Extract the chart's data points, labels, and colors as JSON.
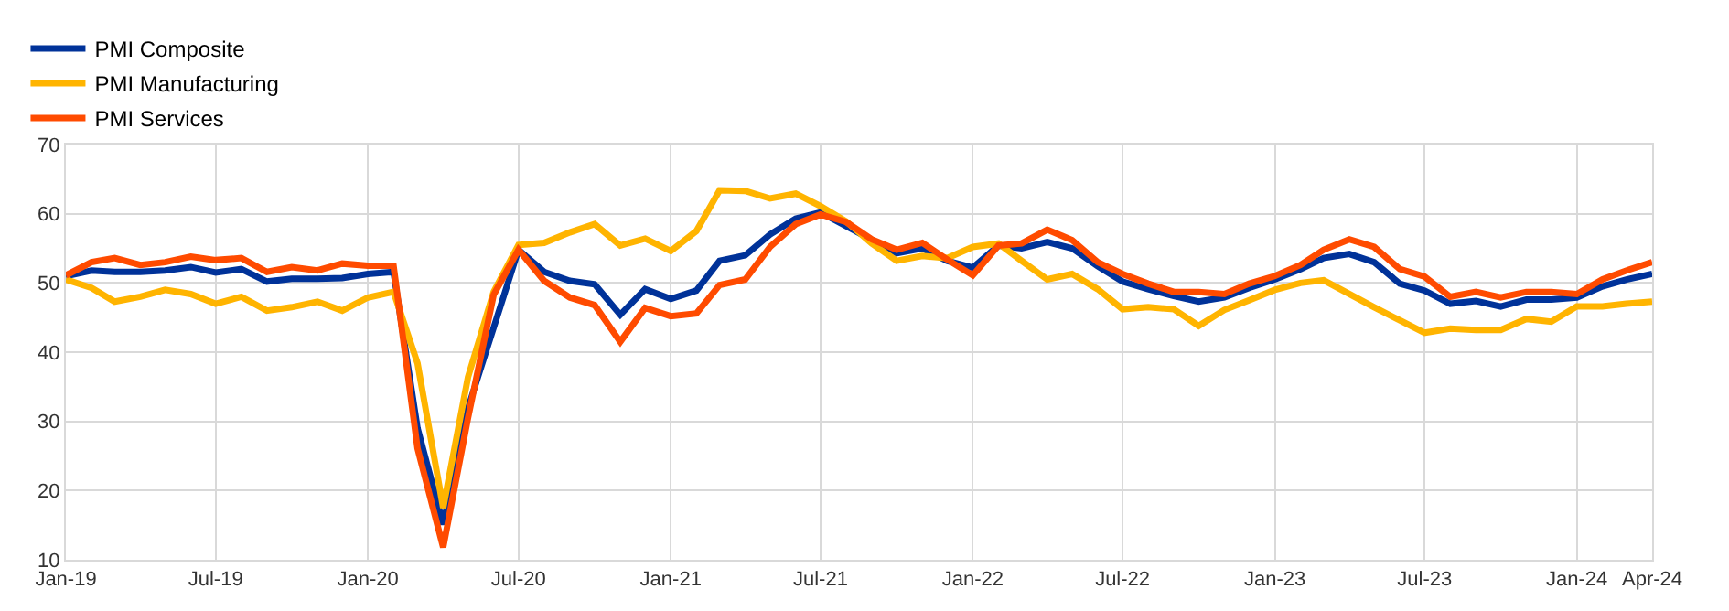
{
  "chart_data": {
    "type": "line",
    "x": [
      "2019-01",
      "2019-02",
      "2019-03",
      "2019-04",
      "2019-05",
      "2019-06",
      "2019-07",
      "2019-08",
      "2019-09",
      "2019-10",
      "2019-11",
      "2019-12",
      "2020-01",
      "2020-02",
      "2020-03",
      "2020-04",
      "2020-05",
      "2020-06",
      "2020-07",
      "2020-08",
      "2020-09",
      "2020-10",
      "2020-11",
      "2020-12",
      "2021-01",
      "2021-02",
      "2021-03",
      "2021-04",
      "2021-05",
      "2021-06",
      "2021-07",
      "2021-08",
      "2021-09",
      "2021-10",
      "2021-11",
      "2021-12",
      "2022-01",
      "2022-02",
      "2022-03",
      "2022-04",
      "2022-05",
      "2022-06",
      "2022-07",
      "2022-08",
      "2022-09",
      "2022-10",
      "2022-11",
      "2022-12",
      "2023-01",
      "2023-02",
      "2023-03",
      "2023-04",
      "2023-05",
      "2023-06",
      "2023-07",
      "2023-08",
      "2023-09",
      "2023-10",
      "2023-11",
      "2023-12",
      "2024-01",
      "2024-02",
      "2024-03",
      "2024-04"
    ],
    "series": [
      {
        "name": "PMI Composite",
        "color": "#003299",
        "values": [
          51.0,
          51.8,
          51.6,
          51.6,
          51.8,
          52.3,
          51.5,
          52.0,
          50.2,
          50.6,
          50.6,
          50.7,
          51.3,
          51.6,
          29.0,
          15.1,
          31.9,
          null,
          54.8,
          51.6,
          50.3,
          49.8,
          45.4,
          49.1,
          47.7,
          48.9,
          53.2,
          54.0,
          57.0,
          59.3,
          60.2,
          null,
          null,
          54.3,
          55.0,
          53.2,
          52.2,
          55.4,
          55.0,
          55.9,
          55.0,
          52.4,
          50.2,
          49.1,
          48.1,
          47.3,
          47.9,
          49.3,
          50.5,
          52.0,
          53.6,
          54.2,
          53.0,
          49.9,
          48.9,
          47.0,
          47.4,
          46.6,
          47.6,
          47.6,
          47.9,
          49.5,
          50.5,
          51.3
        ]
      },
      {
        "name": "PMI Manufacturing",
        "color": "#ffb400",
        "values": [
          50.5,
          49.3,
          47.3,
          48.0,
          49.0,
          48.4,
          47.0,
          48.0,
          46.0,
          46.5,
          47.3,
          46.0,
          47.9,
          48.7,
          38.4,
          17.5,
          36.4,
          48.7,
          55.5,
          55.8,
          57.3,
          58.5,
          55.4,
          56.4,
          54.6,
          57.5,
          63.4,
          63.3,
          62.2,
          62.9,
          61.1,
          58.9,
          55.7,
          53.2,
          53.9,
          53.6,
          55.2,
          55.7,
          53.2,
          50.5,
          51.3,
          49.1,
          46.2,
          46.5,
          46.2,
          43.8,
          46.1,
          47.5,
          49.0,
          50.0,
          50.4,
          48.4,
          46.5,
          44.6,
          42.8,
          43.4,
          43.2,
          43.2,
          44.8,
          44.4,
          46.6,
          46.6,
          47.0,
          47.3
        ]
      },
      {
        "name": "PMI Services",
        "color": "#ff4b00",
        "values": [
          51.1,
          53.0,
          53.6,
          52.6,
          53.0,
          53.8,
          53.3,
          53.6,
          51.6,
          52.3,
          51.8,
          52.8,
          52.5,
          52.5,
          26.1,
          11.8,
          30.5,
          48.3,
          54.8,
          50.3,
          47.9,
          46.8,
          41.5,
          46.4,
          45.2,
          45.6,
          49.7,
          50.5,
          55.2,
          58.5,
          59.9,
          58.8,
          56.3,
          54.8,
          55.8,
          53.4,
          51.1,
          55.4,
          55.7,
          57.7,
          56.2,
          53.0,
          51.3,
          49.9,
          48.7,
          48.7,
          48.4,
          49.9,
          51.0,
          52.6,
          54.8,
          56.3,
          55.2,
          52.0,
          50.9,
          48.0,
          48.7,
          47.9,
          48.7,
          48.7,
          48.4,
          50.5,
          51.8,
          53.0
        ]
      }
    ],
    "xlim": [
      "2019-01",
      "2024-04"
    ],
    "xticks": [
      {
        "value": "2019-01",
        "label": "Jan-19"
      },
      {
        "value": "2019-07",
        "label": "Jul-19"
      },
      {
        "value": "2020-01",
        "label": "Jan-20"
      },
      {
        "value": "2020-07",
        "label": "Jul-20"
      },
      {
        "value": "2021-01",
        "label": "Jan-21"
      },
      {
        "value": "2021-07",
        "label": "Jul-21"
      },
      {
        "value": "2022-01",
        "label": "Jan-22"
      },
      {
        "value": "2022-07",
        "label": "Jul-22"
      },
      {
        "value": "2023-01",
        "label": "Jan-23"
      },
      {
        "value": "2023-07",
        "label": "Jul-23"
      },
      {
        "value": "2024-01",
        "label": "Jan-24"
      },
      {
        "value": "2024-04",
        "label": "Apr-24"
      }
    ],
    "ylim": [
      10,
      70
    ],
    "yticks": [
      10,
      20,
      30,
      40,
      50,
      60,
      70
    ],
    "grid": true,
    "legend": "top left",
    "marker": "none",
    "line_style": "solid"
  }
}
